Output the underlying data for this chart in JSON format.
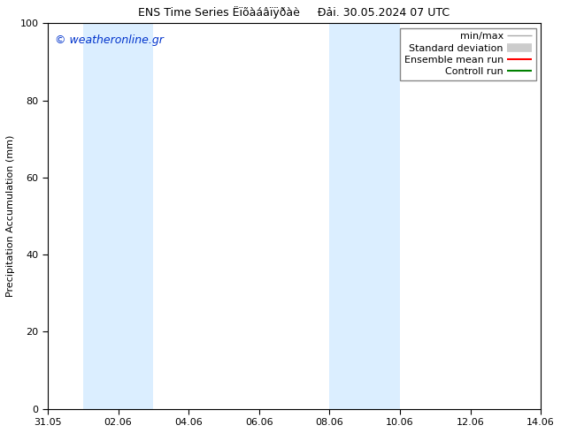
{
  "title_part1": "ENS Time Series Ëïõàáâïÿðàè",
  "title_part2": "Đải. 30.05.2024 07 UTC",
  "ylabel": "Precipitation Accumulation (mm)",
  "ylim": [
    0,
    100
  ],
  "yticks": [
    0,
    20,
    40,
    60,
    80,
    100
  ],
  "xlim": [
    0,
    14
  ],
  "xtick_labels": [
    "31.05",
    "02.06",
    "04.06",
    "06.06",
    "08.06",
    "10.06",
    "12.06",
    "14.06"
  ],
  "xtick_positions": [
    0,
    2,
    4,
    6,
    8,
    10,
    12,
    14
  ],
  "watermark": "© weatheronline.gr",
  "watermark_color": "#0033cc",
  "bg_color": "#ffffff",
  "plot_bg_color": "#ffffff",
  "shaded_regions": [
    {
      "x_start": 1.0,
      "x_end": 3.0,
      "color": "#dbeeff"
    },
    {
      "x_start": 8.0,
      "x_end": 10.0,
      "color": "#dbeeff"
    }
  ],
  "legend_items": [
    {
      "label": "min/max",
      "color": "#aaaaaa",
      "lw": 1.0
    },
    {
      "label": "Standard deviation",
      "color": "#cccccc",
      "lw": 7
    },
    {
      "label": "Ensemble mean run",
      "color": "#ff0000",
      "lw": 1.5
    },
    {
      "label": "Controll run",
      "color": "#008000",
      "lw": 1.5
    }
  ],
  "font_size": 8,
  "title_font_size": 9,
  "label_font_size": 8
}
